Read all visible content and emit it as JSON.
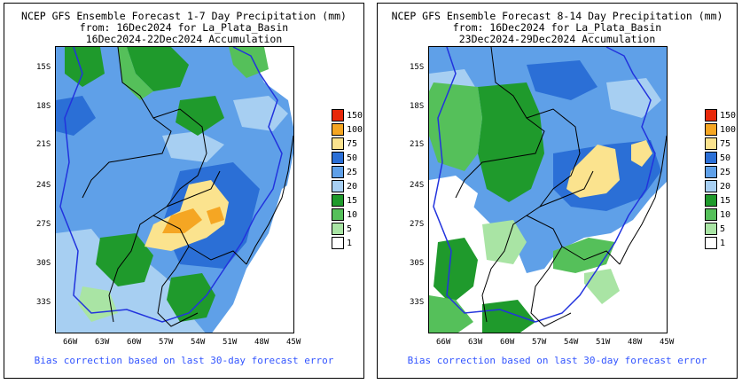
{
  "panels": [
    {
      "title_line1": "NCEP GFS Ensemble Forecast 1-7 Day Precipitation (mm)",
      "title_line2": "from: 16Dec2024   for La_Plata_Basin",
      "title_line3": "16Dec2024-22Dec2024 Accumulation",
      "footer": "Bias correction based on last 30-day forecast error"
    },
    {
      "title_line1": "NCEP GFS Ensemble Forecast 8-14 Day Precipitation (mm)",
      "title_line2": "from: 16Dec2024   for La_Plata_Basin",
      "title_line3": "23Dec2024-29Dec2024 Accumulation",
      "footer": "Bias correction based on last 30-day forecast error"
    }
  ],
  "lat_labels": [
    "15S",
    "18S",
    "21S",
    "24S",
    "27S",
    "30S",
    "33S"
  ],
  "lon_labels": [
    "66W",
    "63W",
    "60W",
    "57W",
    "54W",
    "51W",
    "48W",
    "45W"
  ],
  "legend": [
    {
      "label": "150",
      "color": "#e8280a"
    },
    {
      "label": "100",
      "color": "#f5a623"
    },
    {
      "label": "75",
      "color": "#fbe38e"
    },
    {
      "label": "50",
      "color": "#2b6fd6"
    },
    {
      "label": "25",
      "color": "#5fa0e8"
    },
    {
      "label": "20",
      "color": "#a7cff2"
    },
    {
      "label": "15",
      "color": "#1f9a2c"
    },
    {
      "label": "10",
      "color": "#55c05a"
    },
    {
      "label": "5",
      "color": "#a9e4a4"
    },
    {
      "label": "1",
      "color": "#ffffff"
    }
  ],
  "colors": {
    "basin_outline": "#2233dd",
    "border_line": "#000000",
    "footer_text": "#3355ff",
    "no_rain": "#ffffff",
    "light_blue": "#a7cff2",
    "mid_blue": "#5fa0e8",
    "dark_blue": "#2b6fd6",
    "dark_green": "#1f9a2c",
    "mid_green": "#55c05a",
    "light_green": "#a9e4a4",
    "yellow": "#fbe38e",
    "orange": "#f5a623"
  }
}
